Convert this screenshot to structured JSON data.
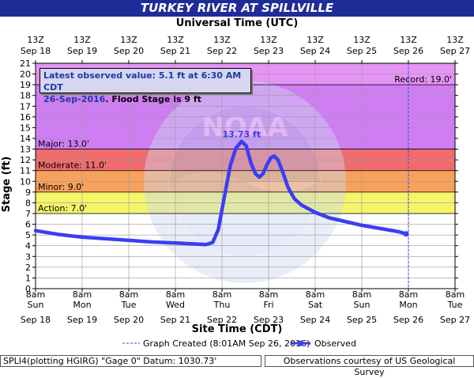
{
  "title": "TURKEY RIVER AT SPILLVILLE",
  "top_axis_title": "Universal Time (UTC)",
  "bottom_axis_title": "Site Time (CDT)",
  "y_axis_title": "Stage (ft)",
  "info_box": {
    "line1": "Latest observed value: 5.1 ft at 6:30 AM CDT",
    "date": "26-Sep-2016",
    "line2_rest": ". Flood Stage is 9 ft"
  },
  "legend": {
    "graph_created_label": "Graph Created (8:01AM Sep 26, 2016)",
    "observed_label": "Observed"
  },
  "footer": {
    "left": "SPLI4(plotting HGIRG) \"Gage 0\" Datum: 1030.73'",
    "right": "Observations courtesy of US Geological Survey"
  },
  "colors": {
    "title_bar": "#1f2c98",
    "record_band": "#e494f4",
    "major_band": "#cf7df2",
    "moderate_band": "#f06c6c",
    "minor_band": "#f7a15a",
    "action_band": "#f5f56a",
    "normal_band": "#ffffff",
    "observed_line": "#3a3ef2",
    "peak_label": "#3a3ef2",
    "background": "#ffffff"
  },
  "watermark": "NATIONAL OCEANIC AND ATMOSPHERIC ADMINISTRATION - U.S. DEPARTMENT OF COMMERCE - NOAA",
  "chart_data": {
    "type": "line",
    "ylabel": "Stage (ft)",
    "xlabel": "Site Time (CDT)",
    "ylim": [
      0,
      21
    ],
    "y_ticks": [
      0,
      1,
      2,
      3,
      4,
      5,
      6,
      7,
      8,
      9,
      10,
      11,
      12,
      13,
      14,
      15,
      16,
      17,
      18,
      19,
      20,
      21
    ],
    "top_ticks": [
      {
        "day": 0,
        "line1": "13Z",
        "line2": "Sep 18"
      },
      {
        "day": 1,
        "line1": "13Z",
        "line2": "Sep 19"
      },
      {
        "day": 2,
        "line1": "13Z",
        "line2": "Sep 20"
      },
      {
        "day": 3,
        "line1": "13Z",
        "line2": "Sep 21"
      },
      {
        "day": 4,
        "line1": "13Z",
        "line2": "Sep 22"
      },
      {
        "day": 5,
        "line1": "13Z",
        "line2": "Sep 23"
      },
      {
        "day": 6,
        "line1": "13Z",
        "line2": "Sep 24"
      },
      {
        "day": 7,
        "line1": "13Z",
        "line2": "Sep 25"
      },
      {
        "day": 8,
        "line1": "13Z",
        "line2": "Sep 26"
      },
      {
        "day": 9,
        "line1": "13Z",
        "line2": "Sep 27"
      }
    ],
    "bottom_ticks": [
      {
        "day": 0,
        "line1": "8am",
        "line2": "Sun",
        "line3": "Sep 18"
      },
      {
        "day": 1,
        "line1": "8am",
        "line2": "Mon",
        "line3": "Sep 19"
      },
      {
        "day": 2,
        "line1": "8am",
        "line2": "Tue",
        "line3": "Sep 20"
      },
      {
        "day": 3,
        "line1": "8am",
        "line2": "Wed",
        "line3": "Sep 21"
      },
      {
        "day": 4,
        "line1": "8am",
        "line2": "Thu",
        "line3": "Sep 22"
      },
      {
        "day": 5,
        "line1": "8am",
        "line2": "Fri",
        "line3": "Sep 23"
      },
      {
        "day": 6,
        "line1": "8am",
        "line2": "Sat",
        "line3": "Sep 24"
      },
      {
        "day": 7,
        "line1": "8am",
        "line2": "Sun",
        "line3": "Sep 25"
      },
      {
        "day": 8,
        "line1": "8am",
        "line2": "Mon",
        "line3": "Sep 26"
      },
      {
        "day": 9,
        "line1": "8am",
        "line2": "Tue",
        "line3": "Sep 27"
      }
    ],
    "flood_categories": [
      {
        "name": "Record",
        "label": "Record: 19.0'",
        "from": 19,
        "to": 21,
        "color_key": "record_band"
      },
      {
        "name": "Major",
        "label": "Major: 13.0'",
        "from": 13,
        "to": 19,
        "color_key": "major_band"
      },
      {
        "name": "Moderate",
        "label": "Moderate: 11.0'",
        "from": 11,
        "to": 13,
        "color_key": "moderate_band"
      },
      {
        "name": "Minor",
        "label": "Minor: 9.0'",
        "from": 9,
        "to": 11,
        "color_key": "minor_band"
      },
      {
        "name": "Action",
        "label": "Action: 7.0'",
        "from": 7,
        "to": 9,
        "color_key": "action_band"
      }
    ],
    "peak_label": "13.73 ft",
    "peak": {
      "day": 4.42,
      "value": 13.73
    },
    "graph_created_day": 8.0,
    "series": [
      {
        "name": "Observed",
        "points": [
          [
            0.0,
            5.4
          ],
          [
            0.5,
            5.05
          ],
          [
            1.0,
            4.8
          ],
          [
            1.5,
            4.65
          ],
          [
            2.0,
            4.5
          ],
          [
            2.5,
            4.35
          ],
          [
            3.0,
            4.25
          ],
          [
            3.5,
            4.15
          ],
          [
            3.65,
            4.1
          ],
          [
            3.8,
            4.3
          ],
          [
            3.92,
            5.5
          ],
          [
            4.05,
            8.5
          ],
          [
            4.18,
            11.5
          ],
          [
            4.3,
            13.1
          ],
          [
            4.42,
            13.73
          ],
          [
            4.52,
            13.3
          ],
          [
            4.62,
            11.7
          ],
          [
            4.72,
            10.7
          ],
          [
            4.8,
            10.4
          ],
          [
            4.88,
            10.7
          ],
          [
            4.96,
            11.5
          ],
          [
            5.05,
            12.2
          ],
          [
            5.12,
            12.35
          ],
          [
            5.2,
            12.0
          ],
          [
            5.3,
            10.9
          ],
          [
            5.42,
            9.4
          ],
          [
            5.55,
            8.4
          ],
          [
            5.7,
            7.8
          ],
          [
            6.0,
            7.1
          ],
          [
            6.3,
            6.6
          ],
          [
            6.6,
            6.3
          ],
          [
            7.0,
            5.9
          ],
          [
            7.4,
            5.6
          ],
          [
            7.8,
            5.3
          ],
          [
            7.95,
            5.1
          ]
        ]
      }
    ]
  }
}
